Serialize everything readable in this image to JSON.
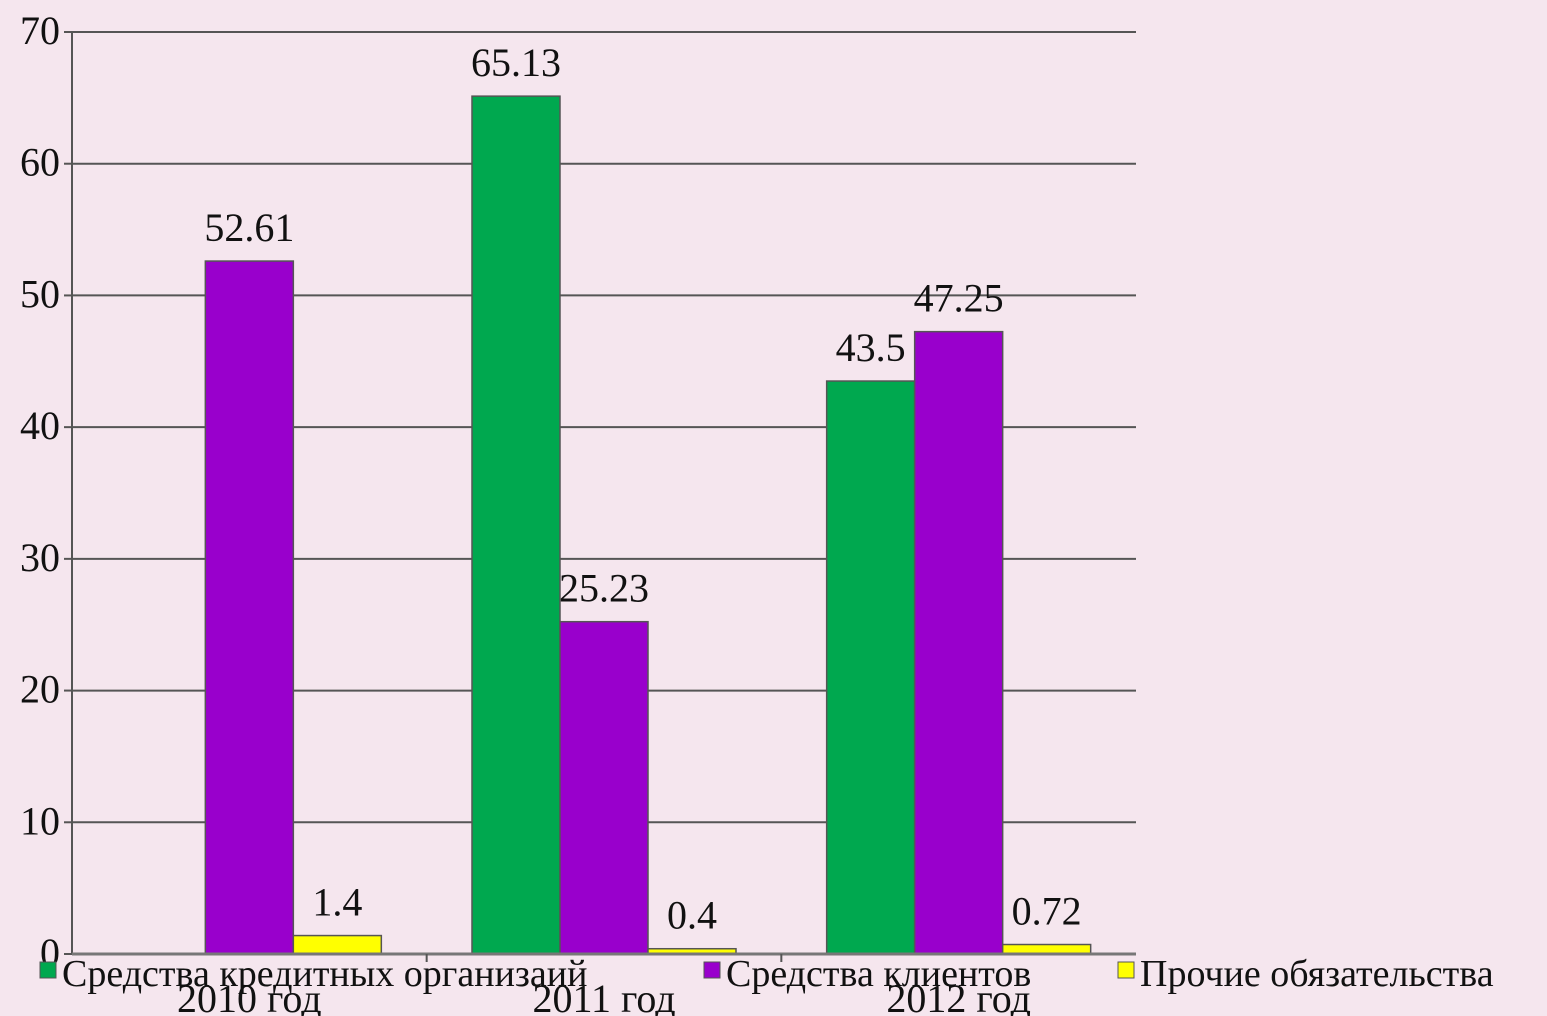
{
  "chart_data": {
    "type": "bar",
    "categories": [
      "2010 год",
      "2011 год",
      "2012 год"
    ],
    "series": [
      {
        "name": "Средства кредитных организаий",
        "color": "#00a84f",
        "values": [
          0,
          65.13,
          43.5
        ],
        "labels": [
          "",
          "65.13",
          "43.5"
        ]
      },
      {
        "name": "Средства клиентов",
        "color": "#9900cc",
        "values": [
          52.61,
          25.23,
          47.25
        ],
        "labels": [
          "52.61",
          "25.23",
          "47.25"
        ]
      },
      {
        "name": "Прочие обязательства",
        "color": "#ffff00",
        "values": [
          1.4,
          0.4,
          0.72
        ],
        "labels": [
          "1.4",
          "0.4",
          "0.72"
        ]
      }
    ],
    "ylim": [
      0,
      70
    ],
    "yticks": [
      "0",
      "10",
      "20",
      "30",
      "40",
      "50",
      "60",
      "70"
    ],
    "grid": true,
    "legend": "bottom"
  }
}
